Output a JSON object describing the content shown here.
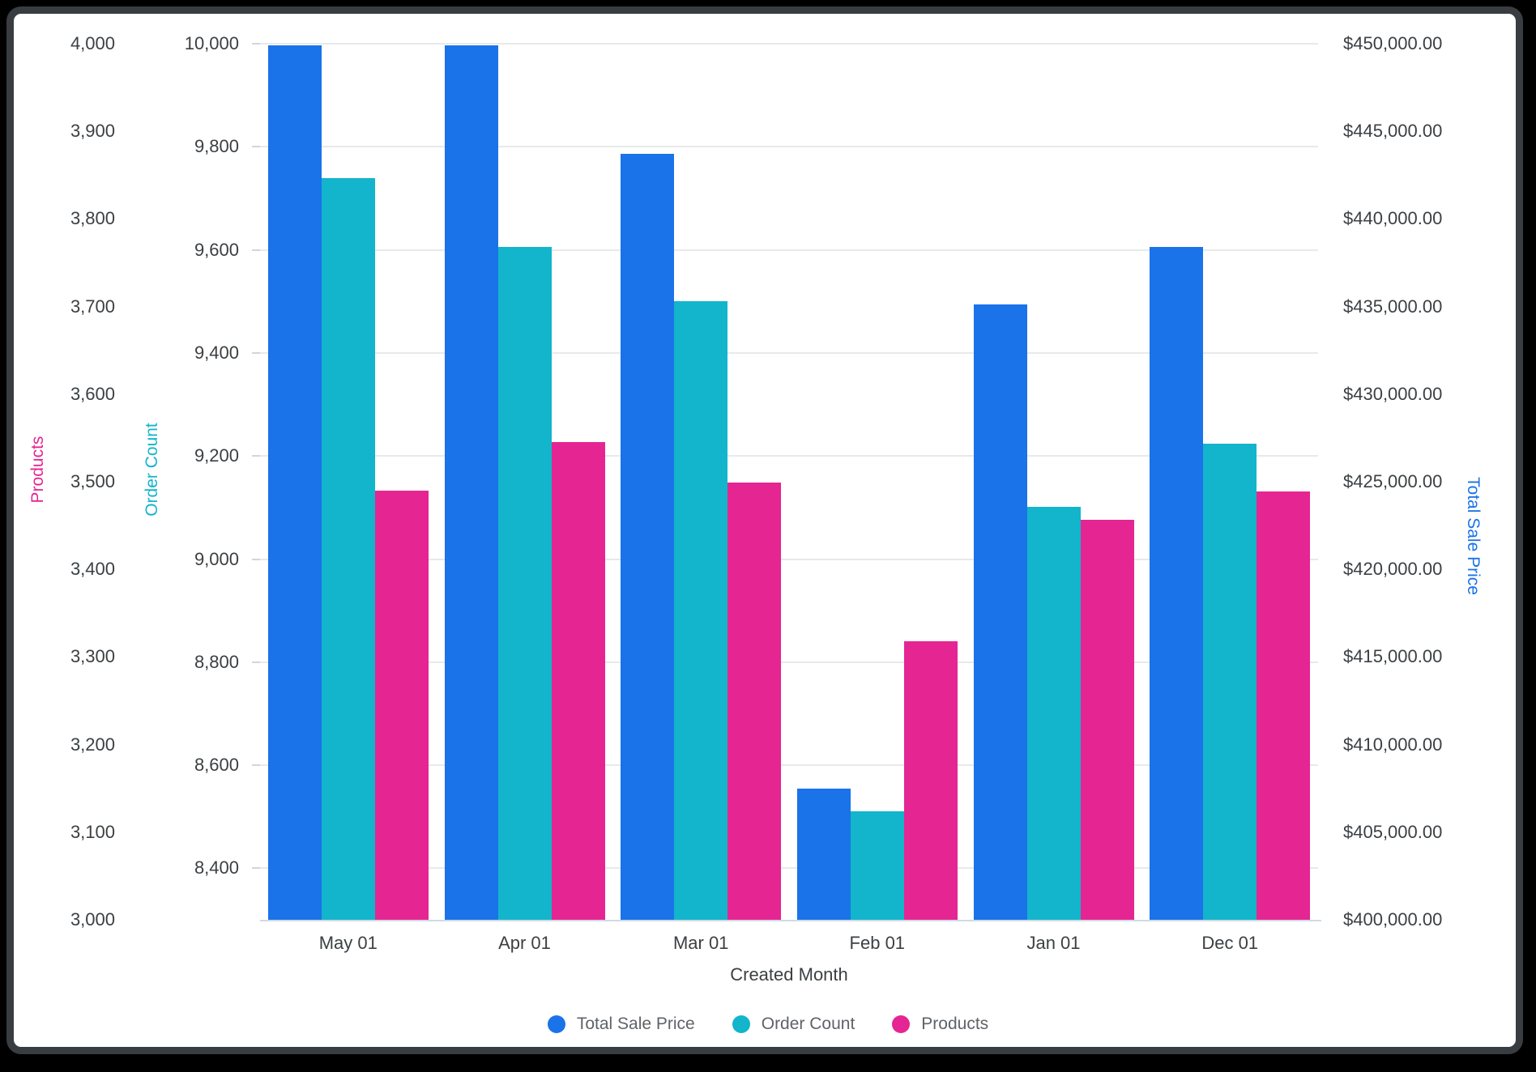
{
  "chart_data": {
    "type": "bar",
    "categories": [
      "May 01",
      "Apr 01",
      "Mar 01",
      "Feb 01",
      "Jan 01",
      "Dec 01"
    ],
    "xlabel": "Created Month",
    "series": [
      {
        "name": "Total Sale Price",
        "axis": "price",
        "color": "#1A73E8",
        "values": [
          449900,
          449900,
          443700,
          407500,
          435100,
          438400
        ]
      },
      {
        "name": "Order Count",
        "axis": "order",
        "color": "#12B5CB",
        "values": [
          9739,
          9605,
          9501,
          8511,
          9102,
          9224
        ]
      },
      {
        "name": "Products",
        "axis": "products",
        "color": "#E52592",
        "values": [
          3490,
          3545,
          3499,
          3318,
          3457,
          3489
        ]
      }
    ],
    "axes": {
      "products": {
        "title": "Products",
        "color": "#E52592",
        "side": "left",
        "min": 3000,
        "max": 4000,
        "tick_values": [
          3000,
          3100,
          3200,
          3300,
          3400,
          3500,
          3600,
          3700,
          3800,
          3900,
          4000
        ],
        "tick_labels": [
          "3,000",
          "3,100",
          "3,200",
          "3,300",
          "3,400",
          "3,500",
          "3,600",
          "3,700",
          "3,800",
          "3,900",
          "4,000"
        ]
      },
      "order": {
        "title": "Order Count",
        "color": "#12B5CB",
        "side": "left",
        "min": 8300,
        "max": 10000,
        "tick_values": [
          8400,
          8600,
          8800,
          9000,
          9200,
          9400,
          9600,
          9800,
          10000
        ],
        "tick_labels": [
          "8,400",
          "8,600",
          "8,800",
          "9,000",
          "9,200",
          "9,400",
          "9,600",
          "9,800",
          "10,000"
        ]
      },
      "price": {
        "title": "Total Sale Price",
        "color": "#1A73E8",
        "side": "right",
        "min": 400000,
        "max": 450000,
        "tick_values": [
          400000,
          405000,
          410000,
          415000,
          420000,
          425000,
          430000,
          435000,
          440000,
          445000,
          450000
        ],
        "tick_labels": [
          "$400,000.00",
          "$405,000.00",
          "$410,000.00",
          "$415,000.00",
          "$420,000.00",
          "$425,000.00",
          "$430,000.00",
          "$435,000.00",
          "$440,000.00",
          "$445,000.00",
          "$450,000.00"
        ]
      }
    },
    "legend": [
      {
        "label": "Total Sale Price",
        "color": "#1A73E8"
      },
      {
        "label": "Order Count",
        "color": "#12B5CB"
      },
      {
        "label": "Products",
        "color": "#E52592"
      }
    ],
    "grid": "horizontal gridlines on order-count ticks",
    "legend_position": "bottom"
  }
}
